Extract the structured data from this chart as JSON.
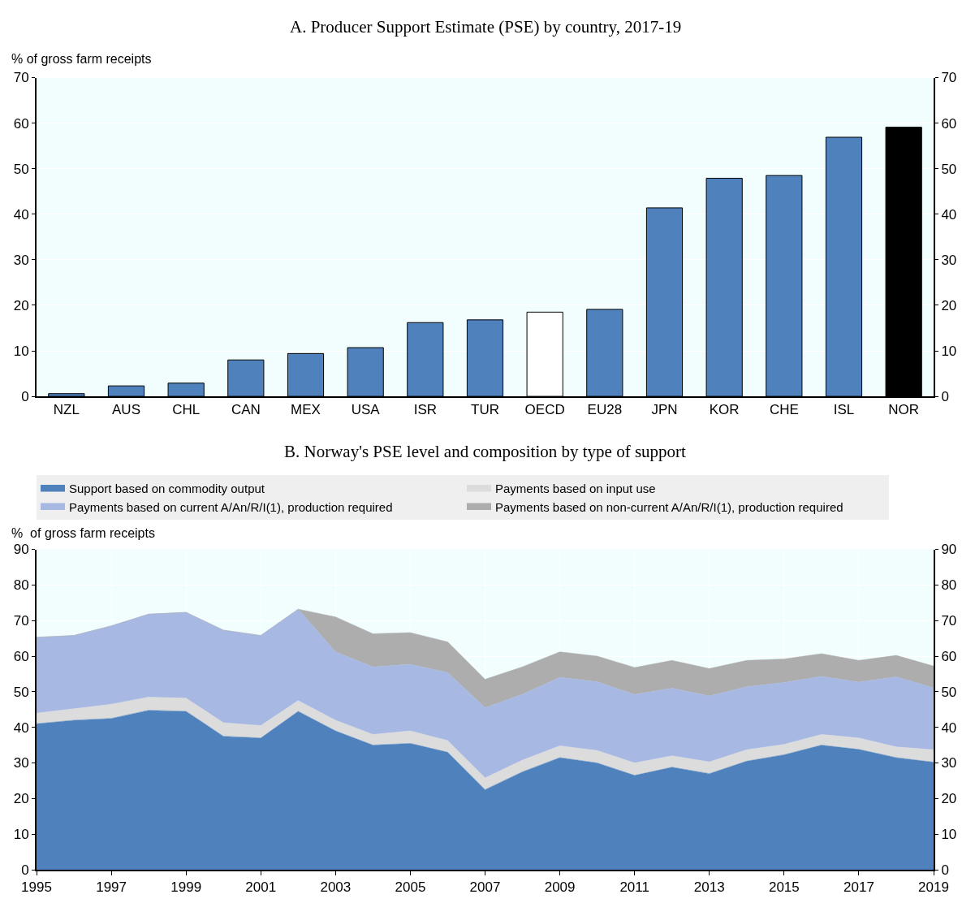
{
  "chart_data": [
    {
      "type": "bar",
      "title": "A. Producer Support Estimate (PSE) by country, 2017-19",
      "ylabel": "% of gross farm receipts",
      "categories": [
        "NZL",
        "AUS",
        "CHL",
        "CAN",
        "MEX",
        "USA",
        "ISR",
        "TUR",
        "OECD",
        "EU28",
        "JPN",
        "KOR",
        "CHE",
        "ISL",
        "NOR"
      ],
      "values": [
        0.6,
        2.3,
        2.9,
        8,
        9.4,
        10.7,
        16.2,
        16.8,
        18.5,
        19.1,
        41.4,
        47.9,
        48.5,
        56.9,
        59.1
      ],
      "colors": [
        "#4f81bd",
        "#4f81bd",
        "#4f81bd",
        "#4f81bd",
        "#4f81bd",
        "#4f81bd",
        "#4f81bd",
        "#4f81bd",
        "#ffffff",
        "#4f81bd",
        "#4f81bd",
        "#4f81bd",
        "#4f81bd",
        "#4f81bd",
        "#000000"
      ],
      "ylim": [
        0,
        70
      ],
      "yticks": [
        0,
        10,
        20,
        30,
        40,
        50,
        60,
        70
      ],
      "y2lim": [
        0,
        70
      ],
      "y2ticks": [
        0,
        10,
        20,
        30,
        40,
        50,
        60,
        70
      ],
      "grid": "y",
      "legend": false
    },
    {
      "type": "area",
      "stacked": true,
      "title": "B. Norway's PSE level and composition by type of support",
      "ylabel": "%  of gross farm receipts",
      "x": [
        1995,
        1996,
        1997,
        1998,
        1999,
        2000,
        2001,
        2002,
        2003,
        2004,
        2005,
        2006,
        2007,
        2008,
        2009,
        2010,
        2011,
        2012,
        2013,
        2014,
        2015,
        2016,
        2017,
        2018,
        2019
      ],
      "series": [
        {
          "name": "Support based on commodity output",
          "color": "#4f81bd",
          "values": [
            41,
            42,
            42.5,
            44.8,
            44.5,
            37.5,
            37,
            44.5,
            39,
            35,
            35.5,
            33,
            22.5,
            27.5,
            31.5,
            30,
            26.5,
            28.8,
            27,
            30.5,
            32.3,
            35,
            33.8,
            31.5,
            30.2
          ]
        },
        {
          "name": "Payments based on input use",
          "color": "#dcdcdc",
          "values": [
            3,
            3.2,
            4,
            3.7,
            3.7,
            3.8,
            3.5,
            3,
            3,
            3,
            3.5,
            3.3,
            3.3,
            3.3,
            3.3,
            3.5,
            3.5,
            3.2,
            3.3,
            3.2,
            2.9,
            3,
            3.2,
            3,
            3.5
          ]
        },
        {
          "name": "Payments based on current A/An/R/I(1), production required",
          "color": "#a7b8e2",
          "values": [
            21.3,
            20.6,
            22,
            23.3,
            24.1,
            26,
            25.3,
            25.7,
            19.2,
            19,
            18.7,
            19.1,
            19.7,
            18.5,
            19.2,
            19.3,
            19.2,
            19,
            18.5,
            17.7,
            17.4,
            16.3,
            15.7,
            19.7,
            17.4
          ]
        },
        {
          "name": "Payments based on non-current A/An/R/I(1), production required",
          "color": "#adadad",
          "values": [
            0,
            0,
            0,
            0,
            0,
            0,
            0,
            0,
            9.8,
            9.3,
            8.9,
            8.6,
            8,
            7.7,
            7.2,
            7.2,
            7.6,
            7.8,
            7.7,
            7.4,
            6.6,
            6.4,
            6.1,
            6,
            6.1
          ]
        }
      ],
      "xlim": [
        1995,
        2019
      ],
      "xticks": [
        1995,
        1997,
        1999,
        2001,
        2003,
        2005,
        2007,
        2009,
        2011,
        2013,
        2015,
        2017,
        2019
      ],
      "ylim": [
        0,
        90
      ],
      "yticks": [
        0,
        10,
        20,
        30,
        40,
        50,
        60,
        70,
        80,
        90
      ],
      "y2lim": [
        0,
        90
      ],
      "y2ticks": [
        0,
        10,
        20,
        30,
        40,
        50,
        60,
        70,
        80,
        90
      ],
      "grid": true,
      "legend": "top"
    }
  ]
}
